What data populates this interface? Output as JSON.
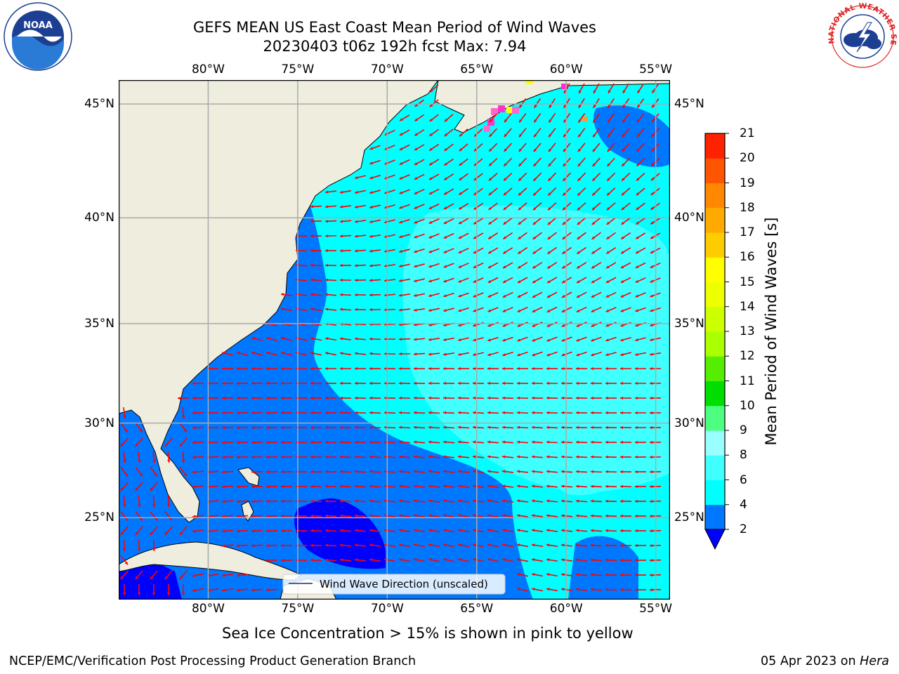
{
  "title": {
    "line1": "GEFS MEAN US East Coast Mean Period of Wind Waves",
    "line2": "20230403 t06z 192h fcst   Max: 7.94"
  },
  "logos": {
    "left": {
      "name": "noaa-logo",
      "text": "NOAA"
    },
    "right": {
      "name": "nws-logo",
      "text": "NATIONAL WEATHER SERVICE"
    }
  },
  "map": {
    "lon_range": [
      -85,
      -54.2
    ],
    "lat_range": [
      20.5,
      46
    ],
    "lon_ticks": [
      {
        "value": -80,
        "label": "80°W"
      },
      {
        "value": -75,
        "label": "75°W"
      },
      {
        "value": -70,
        "label": "70°W"
      },
      {
        "value": -65,
        "label": "65°W"
      },
      {
        "value": -60,
        "label": "60°W"
      },
      {
        "value": -55,
        "label": "55°W"
      }
    ],
    "lat_ticks": [
      {
        "value": 45,
        "label": "45°N"
      },
      {
        "value": 40,
        "label": "40°N"
      },
      {
        "value": 35,
        "label": "35°N"
      },
      {
        "value": 30,
        "label": "30°N"
      },
      {
        "value": 25,
        "label": "25°N"
      }
    ],
    "arrow_color": "#ff0000",
    "land_color": "#efedde",
    "grid": true,
    "legend_label": "Wind Wave Direction (unscaled)"
  },
  "colorbar": {
    "title": "Mean Period of Wind Waves [s]",
    "levels": [
      2,
      4,
      6,
      8,
      9,
      10,
      11,
      12,
      13,
      14,
      15,
      16,
      17,
      18,
      19,
      20,
      21
    ],
    "colors": [
      "#0077ff",
      "#00ffff",
      "#40ffff",
      "#99ffff",
      "#4dff80",
      "#00dd00",
      "#55ee00",
      "#aaff00",
      "#ccff00",
      "#eeff00",
      "#ffff00",
      "#ffcc00",
      "#ffaa00",
      "#ff8800",
      "#ff5500",
      "#ff2200",
      "#ff0000"
    ],
    "under_color": "#0000ff"
  },
  "notes": {
    "sea_ice": "Sea Ice Concentration > 15% is shown in pink to yellow"
  },
  "footer": {
    "left": "NCEP/EMC/Verification Post Processing Product Generation Branch",
    "right_date": "05 Apr 2023 on ",
    "right_host": "Hera"
  }
}
